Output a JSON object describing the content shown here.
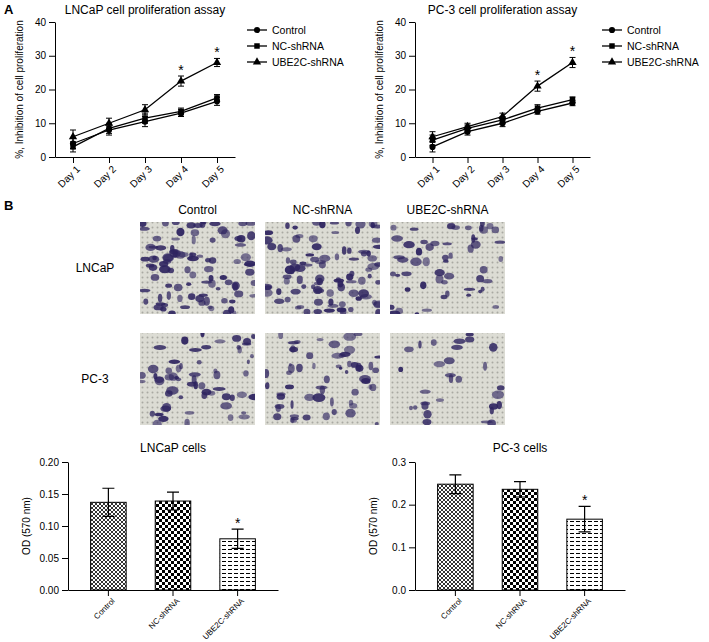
{
  "chart_data": [
    {
      "type": "line",
      "title": "LNCaP cell proliferation assay",
      "ylabel": "%, Inhibition of cell proliferation",
      "categories": [
        "Day 1",
        "Day 2",
        "Day 3",
        "Day 4",
        "Day 5"
      ],
      "series": [
        {
          "name": "Control",
          "color": "#000000",
          "marker": "circle",
          "values": [
            4,
            8,
            10.5,
            13,
            16.5
          ],
          "errors": [
            1.5,
            1.5,
            1.5,
            1,
            1.2
          ]
        },
        {
          "name": "NC-shRNA",
          "color": "#000000",
          "marker": "square",
          "values": [
            3,
            8.5,
            11.5,
            13.5,
            17.5
          ],
          "errors": [
            1.5,
            1.5,
            1.5,
            1,
            1
          ]
        },
        {
          "name": "UBE2C-shRNA",
          "color": "#000000",
          "marker": "triangle",
          "values": [
            6,
            10,
            14,
            22.5,
            28
          ],
          "errors": [
            2,
            1.5,
            1.5,
            1.5,
            1.2
          ]
        }
      ],
      "ylim": [
        0,
        40
      ],
      "yticks": [
        0,
        10,
        20,
        30,
        40
      ],
      "legend": "right",
      "annotations": [
        {
          "series": "UBE2C-shRNA",
          "category": "Day 4",
          "text": "*"
        },
        {
          "series": "UBE2C-shRNA",
          "category": "Day 5",
          "text": "*"
        }
      ]
    },
    {
      "type": "line",
      "title": "PC-3 cell proliferation assay",
      "ylabel": "%, Inhibition of cell proliferation",
      "categories": [
        "Day 1",
        "Day 2",
        "Day 3",
        "Day 4",
        "Day 5"
      ],
      "series": [
        {
          "name": "Control",
          "color": "#000000",
          "marker": "circle",
          "values": [
            3,
            7.5,
            10,
            13.5,
            16
          ],
          "errors": [
            1.5,
            1,
            1,
            0.8,
            0.8
          ]
        },
        {
          "name": "NC-shRNA",
          "color": "#000000",
          "marker": "square",
          "values": [
            5,
            8.5,
            11,
            14.5,
            17
          ],
          "errors": [
            1.5,
            1,
            1,
            1,
            0.8
          ]
        },
        {
          "name": "UBE2C-shRNA",
          "color": "#000000",
          "marker": "triangle",
          "values": [
            6,
            9,
            12,
            21,
            28
          ],
          "errors": [
            1.5,
            1,
            1,
            1.5,
            1.5
          ]
        }
      ],
      "ylim": [
        0,
        40
      ],
      "yticks": [
        0,
        10,
        20,
        30,
        40
      ],
      "legend": "right",
      "annotations": [
        {
          "series": "UBE2C-shRNA",
          "category": "Day 4",
          "text": "*"
        },
        {
          "series": "UBE2C-shRNA",
          "category": "Day 5",
          "text": "*"
        }
      ]
    },
    {
      "type": "bar",
      "title": "LNCaP cells",
      "ylabel": "OD (570 nm)",
      "categories": [
        "Control",
        "NC-shRNA",
        "UBE2C-shRNA"
      ],
      "values": [
        0.137,
        0.139,
        0.08
      ],
      "errors": [
        0.022,
        0.014,
        0.015
      ],
      "color": "#000000",
      "ylim": [
        0,
        0.2
      ],
      "yticks": [
        {
          "value": 0,
          "label": "0.00"
        },
        0.05,
        {
          "value": 0.1,
          "label": "0.10"
        },
        0.15,
        {
          "value": 0.2,
          "label": "0.20"
        }
      ],
      "annotations": [
        {
          "category": "UBE2C-shRNA",
          "text": "*"
        }
      ]
    },
    {
      "type": "bar",
      "title": "PC-3 cells",
      "ylabel": "OD (570 nm)",
      "categories": [
        "Control",
        "NC-shRNA",
        "UBE2C-shRNA"
      ],
      "values": [
        0.248,
        0.236,
        0.166
      ],
      "errors": [
        0.022,
        0.018,
        0.03
      ],
      "color": "#000000",
      "ylim": [
        0,
        0.3
      ],
      "yticks": [
        {
          "value": 0,
          "label": "0.0"
        },
        0.1,
        0.2,
        0.3
      ],
      "annotations": [
        {
          "category": "UBE2C-shRNA",
          "text": "*"
        }
      ]
    }
  ],
  "figure": {
    "panel_labels": [
      "A",
      "B"
    ],
    "columns": [
      "Control",
      "NC-shRNA",
      "UBE2C-shRNA"
    ],
    "rows": [
      "LNCaP",
      "PC-3"
    ]
  }
}
